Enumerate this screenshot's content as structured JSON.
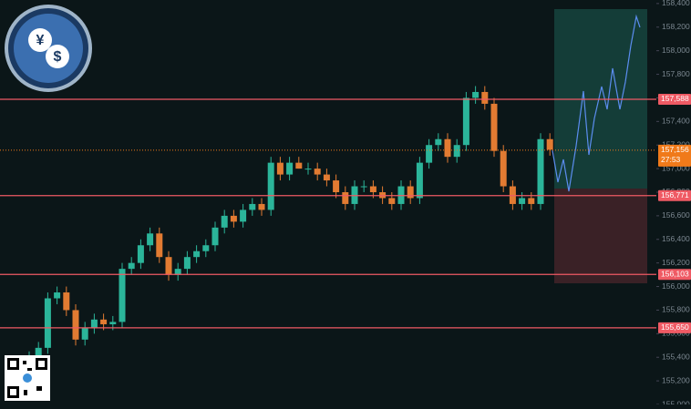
{
  "chart_data": {
    "type": "candlestick",
    "ylim": [
      155000,
      158430
    ],
    "yticks": [
      {
        "value": 155000,
        "label": "155,000"
      },
      {
        "value": 155200,
        "label": "155,200"
      },
      {
        "value": 155400,
        "label": "155,400"
      },
      {
        "value": 155600,
        "label": "155,600"
      },
      {
        "value": 155800,
        "label": "155,800"
      },
      {
        "value": 156000,
        "label": "156,000"
      },
      {
        "value": 156200,
        "label": "156,200"
      },
      {
        "value": 156400,
        "label": "156,400"
      },
      {
        "value": 156600,
        "label": "156,600"
      },
      {
        "value": 156800,
        "label": "156,800"
      },
      {
        "value": 157000,
        "label": "157,000"
      },
      {
        "value": 157200,
        "label": "157,200"
      },
      {
        "value": 157400,
        "label": "157,400"
      },
      {
        "value": 157600,
        "label": "157,600"
      },
      {
        "value": 157800,
        "label": "157,800"
      },
      {
        "value": 158000,
        "label": "158,000"
      },
      {
        "value": 158200,
        "label": "158,200"
      },
      {
        "value": 158400,
        "label": "158,400"
      }
    ],
    "up_color": "#2bb59a",
    "down_color": "#e27b32",
    "open": [
      155350,
      155400,
      155480,
      155900,
      155950,
      155800,
      155550,
      155650,
      155720,
      155680,
      155700,
      156150,
      156200,
      156350,
      156450,
      156250,
      156100,
      156150,
      156250,
      156300,
      156350,
      156500,
      156600,
      156550,
      156650,
      156700,
      156650,
      157050,
      156950,
      157050,
      157000,
      157000,
      156950,
      156900,
      156800,
      156700,
      156850,
      156850,
      156800,
      156750,
      156700,
      156850,
      156750,
      157050,
      157200,
      157250,
      157100,
      157200,
      157600,
      157650,
      157550,
      157150,
      156850,
      156700,
      156750,
      156700,
      157250
    ],
    "high": [
      155450,
      155530,
      155950,
      156000,
      156000,
      155850,
      155700,
      155770,
      155770,
      155750,
      156200,
      156250,
      156400,
      156500,
      156500,
      156300,
      156200,
      156300,
      156350,
      156400,
      156550,
      156650,
      156650,
      156700,
      156750,
      156750,
      157100,
      157100,
      157100,
      157100,
      157050,
      157050,
      157000,
      156950,
      156850,
      156900,
      156900,
      156900,
      156850,
      156800,
      156900,
      156900,
      157100,
      157250,
      157300,
      157300,
      157250,
      157650,
      157700,
      157700,
      157600,
      157200,
      156900,
      156800,
      156800,
      157300,
      157300
    ],
    "low": [
      155300,
      155350,
      155430,
      155850,
      155750,
      155500,
      155500,
      155600,
      155630,
      155630,
      155650,
      156100,
      156150,
      156300,
      156200,
      156050,
      156050,
      156100,
      156200,
      156250,
      156300,
      156450,
      156500,
      156500,
      156600,
      156600,
      156600,
      156900,
      156900,
      157000,
      156950,
      156900,
      156850,
      156750,
      156650,
      156650,
      156800,
      156750,
      156700,
      156650,
      156650,
      156700,
      156700,
      157000,
      157150,
      157050,
      157050,
      157150,
      157550,
      157500,
      157100,
      156800,
      156650,
      156650,
      156650,
      156650,
      157110
    ],
    "close": [
      155400,
      155480,
      155900,
      155950,
      155800,
      155550,
      155650,
      155720,
      155680,
      155700,
      156150,
      156200,
      156350,
      156450,
      156250,
      156100,
      156150,
      156250,
      156300,
      156350,
      156500,
      156600,
      156550,
      156650,
      156700,
      156650,
      157050,
      156950,
      157050,
      157000,
      157000,
      156950,
      156900,
      156800,
      156700,
      156850,
      156850,
      156800,
      156750,
      156700,
      156850,
      156750,
      157050,
      157200,
      157250,
      157100,
      157200,
      157600,
      157650,
      157550,
      157150,
      156850,
      156700,
      156750,
      156700,
      157250,
      157160
    ],
    "levels": [
      {
        "value": 157588,
        "label": "157,588",
        "color": "#ef5a64"
      },
      {
        "value": 156771,
        "label": "156,771",
        "color": "#ef5a64"
      },
      {
        "value": 156103,
        "label": "156,103",
        "color": "#ef5a64"
      },
      {
        "value": 155650,
        "label": "155,650",
        "color": "#ef5a64"
      }
    ],
    "last_price": {
      "value": 157156,
      "label": "157,156",
      "countdown": "27:53",
      "color": "#f07a1a"
    }
  }
}
